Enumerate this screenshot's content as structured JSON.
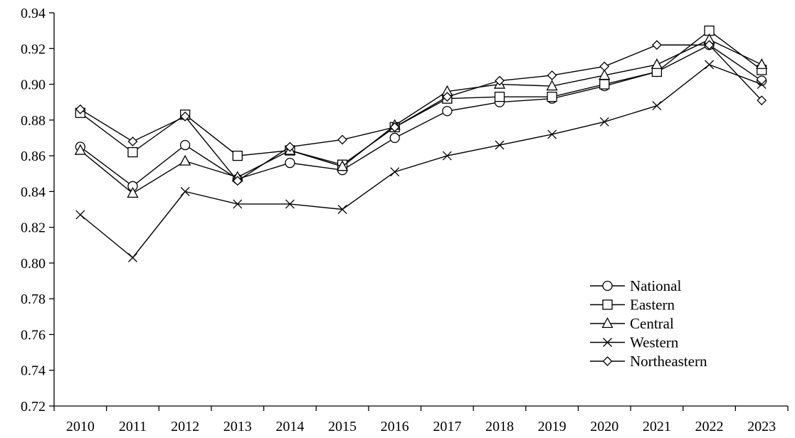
{
  "chart_data": {
    "type": "line",
    "title": "",
    "xlabel": "",
    "ylabel": "",
    "categories": [
      "2010",
      "2011",
      "2012",
      "2013",
      "2014",
      "2015",
      "2016",
      "2017",
      "2018",
      "2019",
      "2020",
      "2021",
      "2022",
      "2023"
    ],
    "ylim": [
      0.72,
      0.94
    ],
    "yticks": [
      "0.72",
      "0.74",
      "0.76",
      "0.78",
      "0.80",
      "0.82",
      "0.84",
      "0.86",
      "0.88",
      "0.90",
      "0.92",
      "0.94"
    ],
    "grid": false,
    "legend_position": "bottom-right",
    "series": [
      {
        "name": "National",
        "marker": "circle",
        "values": [
          0.865,
          0.843,
          0.866,
          0.847,
          0.856,
          0.852,
          0.87,
          0.885,
          0.89,
          0.892,
          0.899,
          0.907,
          0.922,
          0.902
        ]
      },
      {
        "name": "Eastern",
        "marker": "square",
        "values": [
          0.884,
          0.862,
          0.883,
          0.86,
          0.863,
          0.855,
          0.876,
          0.892,
          0.893,
          0.893,
          0.9,
          0.907,
          0.93,
          0.908
        ]
      },
      {
        "name": "Central",
        "marker": "triangle",
        "values": [
          0.863,
          0.839,
          0.857,
          0.848,
          0.863,
          0.854,
          0.877,
          0.896,
          0.9,
          0.899,
          0.905,
          0.911,
          0.925,
          0.911
        ]
      },
      {
        "name": "Western",
        "marker": "x",
        "values": [
          0.827,
          0.803,
          0.84,
          0.833,
          0.833,
          0.83,
          0.851,
          0.86,
          0.866,
          0.872,
          0.879,
          0.888,
          0.911,
          0.9
        ]
      },
      {
        "name": "Northeastern",
        "marker": "diamond",
        "values": [
          0.886,
          0.868,
          0.882,
          0.846,
          0.865,
          0.869,
          0.876,
          0.893,
          0.902,
          0.905,
          0.91,
          0.922,
          0.922,
          0.891
        ]
      }
    ]
  }
}
